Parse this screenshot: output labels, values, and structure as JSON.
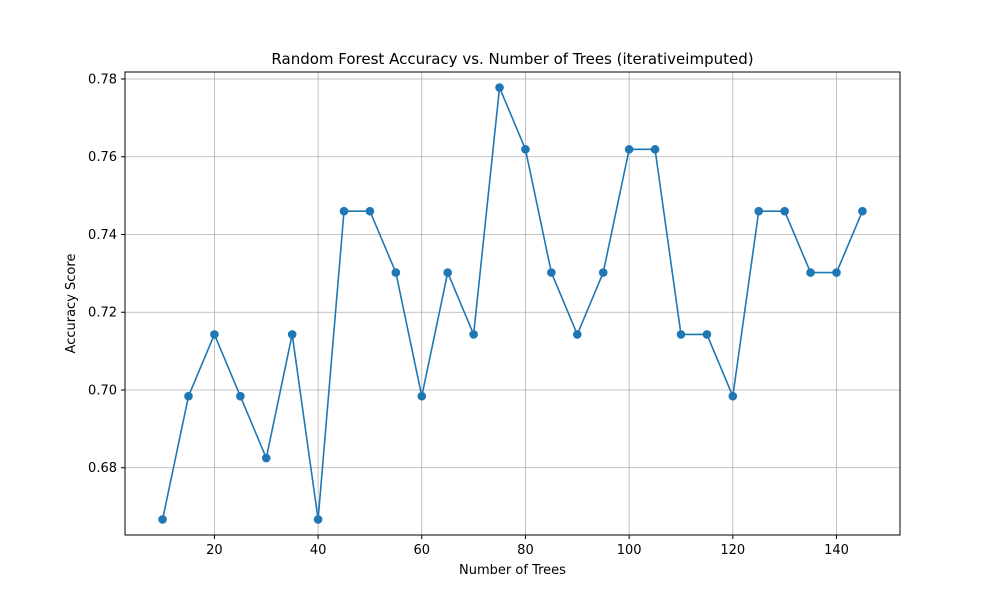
{
  "chart_data": {
    "type": "line",
    "title": "Random Forest Accuracy vs. Number of Trees (iterativeimputed)",
    "xlabel": "Number of Trees",
    "ylabel": "Accuracy Score",
    "xlim": [
      2.75,
      152.25
    ],
    "ylim": [
      0.6627,
      0.7818
    ],
    "xticks": [
      20,
      40,
      60,
      80,
      100,
      120,
      140
    ],
    "yticks": [
      0.68,
      0.7,
      0.72,
      0.74,
      0.76,
      0.78
    ],
    "xtick_labels": [
      "20",
      "40",
      "60",
      "80",
      "100",
      "120",
      "140"
    ],
    "ytick_labels": [
      "0.68",
      "0.70",
      "0.72",
      "0.74",
      "0.76",
      "0.78"
    ],
    "grid": true,
    "color": "#1f77b4",
    "marker": "circle",
    "series": [
      {
        "x": [
          10,
          15,
          20,
          25,
          30,
          35,
          40,
          45,
          50,
          55,
          60,
          65,
          70,
          75,
          80,
          85,
          90,
          95,
          100,
          105,
          110,
          115,
          120,
          125,
          130,
          135,
          140,
          145
        ],
        "values": [
          0.6667,
          0.6984,
          0.7143,
          0.6984,
          0.6825,
          0.7143,
          0.6667,
          0.746,
          0.746,
          0.7302,
          0.6984,
          0.7302,
          0.7143,
          0.7778,
          0.7619,
          0.7302,
          0.7143,
          0.7302,
          0.7619,
          0.7619,
          0.7143,
          0.7143,
          0.6984,
          0.746,
          0.746,
          0.7302,
          0.7302,
          0.746
        ]
      }
    ]
  }
}
